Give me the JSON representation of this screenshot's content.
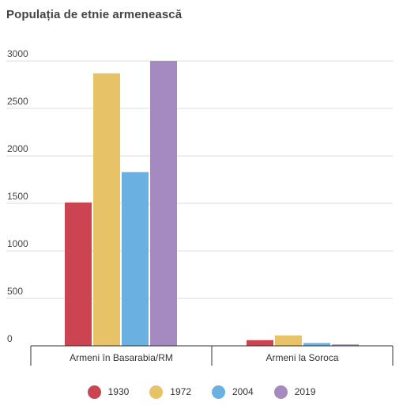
{
  "chart_data": {
    "type": "bar",
    "title": "Populația de etnie armenească",
    "categories": [
      "Armeni în Basarabia/RM",
      "Armeni la Soroca"
    ],
    "series": [
      {
        "name": "1930",
        "color": "#cc4452",
        "values": [
          1510,
          60
        ]
      },
      {
        "name": "1972",
        "color": "#e8c267",
        "values": [
          2870,
          110
        ]
      },
      {
        "name": "2004",
        "color": "#6ab0e0",
        "values": [
          1830,
          30
        ]
      },
      {
        "name": "2019",
        "color": "#a58ac2",
        "values": [
          3000,
          15
        ]
      }
    ],
    "yticks": [
      "0",
      "500",
      "1000",
      "1500",
      "2000",
      "2500",
      "3000"
    ],
    "ylim": [
      0,
      3000
    ],
    "grid": true,
    "legend": "bottom"
  }
}
